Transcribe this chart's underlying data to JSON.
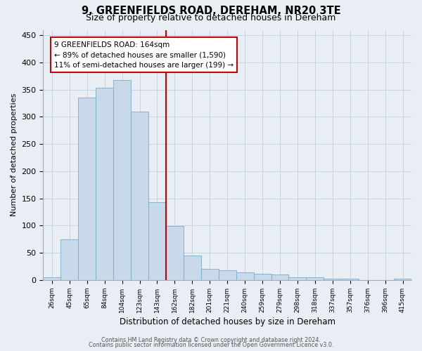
{
  "title": "9, GREENFIELDS ROAD, DEREHAM, NR20 3TE",
  "subtitle": "Size of property relative to detached houses in Dereham",
  "xlabel": "Distribution of detached houses by size in Dereham",
  "ylabel": "Number of detached properties",
  "bar_labels": [
    "26sqm",
    "45sqm",
    "65sqm",
    "84sqm",
    "104sqm",
    "123sqm",
    "143sqm",
    "162sqm",
    "182sqm",
    "201sqm",
    "221sqm",
    "240sqm",
    "259sqm",
    "279sqm",
    "298sqm",
    "318sqm",
    "337sqm",
    "357sqm",
    "376sqm",
    "396sqm",
    "415sqm"
  ],
  "bar_values": [
    5,
    75,
    335,
    353,
    368,
    310,
    143,
    99,
    45,
    20,
    18,
    14,
    11,
    10,
    5,
    5,
    3,
    2,
    0,
    0,
    2
  ],
  "bar_color": "#c8d9ea",
  "bar_edge_color": "#7aaac8",
  "vline_color": "#cc0000",
  "annotation_title": "9 GREENFIELDS ROAD: 164sqm",
  "annotation_line1": "← 89% of detached houses are smaller (1,590)",
  "annotation_line2": "11% of semi-detached houses are larger (199) →",
  "annotation_box_color": "#ffffff",
  "annotation_box_edge": "#cc0000",
  "ylim": [
    0,
    460
  ],
  "grid_color": "#c8d4e0",
  "background_color": "#e8eef4",
  "footer_line1": "Contains HM Land Registry data © Crown copyright and database right 2024.",
  "footer_line2": "Contains public sector information licensed under the Open Government Licence v3.0."
}
